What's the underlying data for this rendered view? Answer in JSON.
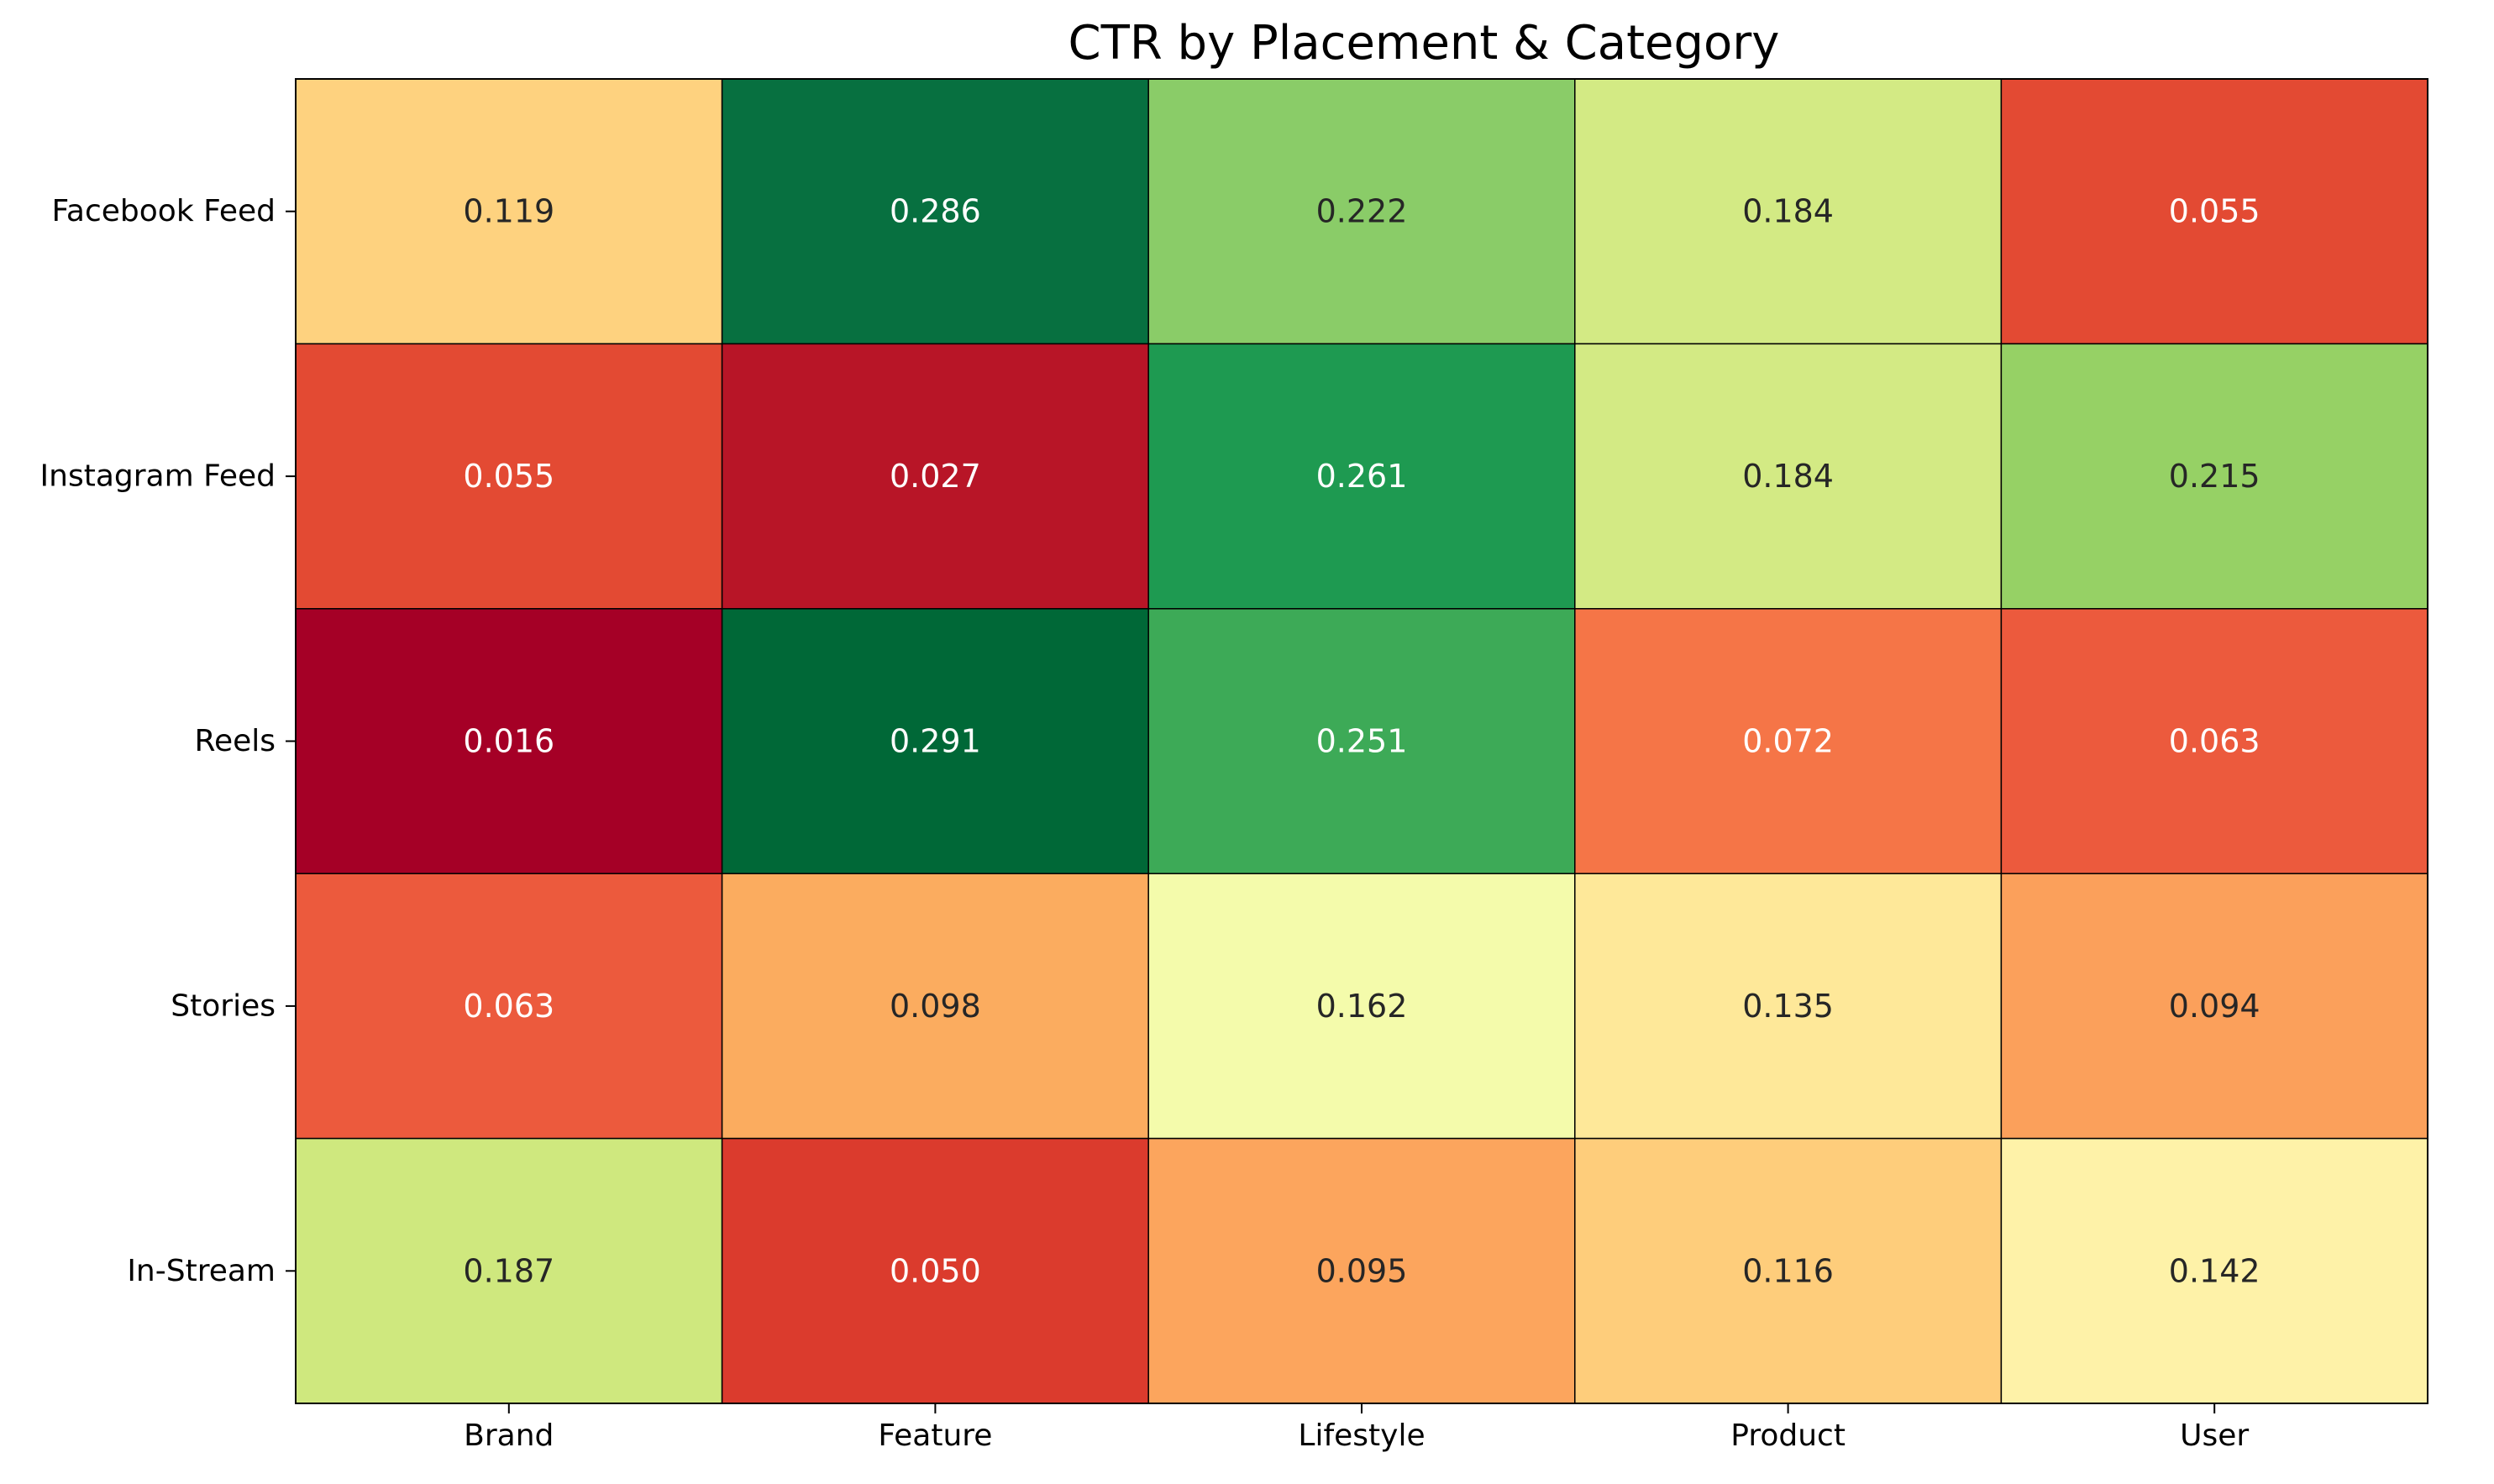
{
  "chart_data": {
    "type": "heatmap",
    "title": "CTR by Placement & Category",
    "xlabel": "",
    "ylabel": "",
    "x_categories": [
      "Brand",
      "Feature",
      "Lifestyle",
      "Product",
      "User"
    ],
    "y_categories": [
      "Facebook Feed",
      "Instagram Feed",
      "Reels",
      "Stories",
      "In-Stream"
    ],
    "values": [
      [
        0.119,
        0.286,
        0.222,
        0.184,
        0.055
      ],
      [
        0.055,
        0.027,
        0.261,
        0.184,
        0.215
      ],
      [
        0.016,
        0.291,
        0.251,
        0.072,
        0.063
      ],
      [
        0.063,
        0.098,
        0.162,
        0.135,
        0.094
      ],
      [
        0.187,
        0.05,
        0.095,
        0.116,
        0.142
      ]
    ],
    "value_labels": [
      [
        "0.119",
        "0.286",
        "0.222",
        "0.184",
        "0.055"
      ],
      [
        "0.055",
        "0.027",
        "0.261",
        "0.184",
        "0.215"
      ],
      [
        "0.016",
        "0.291",
        "0.251",
        "0.072",
        "0.063"
      ],
      [
        "0.063",
        "0.098",
        "0.162",
        "0.135",
        "0.094"
      ],
      [
        "0.187",
        "0.050",
        "0.095",
        "0.116",
        "0.142"
      ]
    ],
    "colormap": "RdYlGn",
    "colorbar": false,
    "grid": false,
    "cell_colors": [
      [
        "#fed27f",
        "#077040",
        "#8acc68",
        "#d3ea84",
        "#e34a33"
      ],
      [
        "#e34a33",
        "#b81527",
        "#1e9a51",
        "#d3ea84",
        "#96d165"
      ],
      [
        "#a50026",
        "#006837",
        "#3daa57",
        "#f57547",
        "#ec5a3d"
      ],
      [
        "#ec5a3d",
        "#fbac5f",
        "#f4fbab",
        "#fee899",
        "#fba05b"
      ],
      [
        "#cfe87e",
        "#db3b2d",
        "#fca55d",
        "#fecd7b",
        "#fef2a8"
      ]
    ],
    "text_colors": [
      [
        "#262626",
        "#ffffff",
        "#262626",
        "#262626",
        "#ffffff"
      ],
      [
        "#ffffff",
        "#ffffff",
        "#ffffff",
        "#262626",
        "#262626"
      ],
      [
        "#ffffff",
        "#ffffff",
        "#ffffff",
        "#ffffff",
        "#ffffff"
      ],
      [
        "#ffffff",
        "#262626",
        "#262626",
        "#262626",
        "#262626"
      ],
      [
        "#262626",
        "#ffffff",
        "#262626",
        "#262626",
        "#262626"
      ]
    ]
  }
}
